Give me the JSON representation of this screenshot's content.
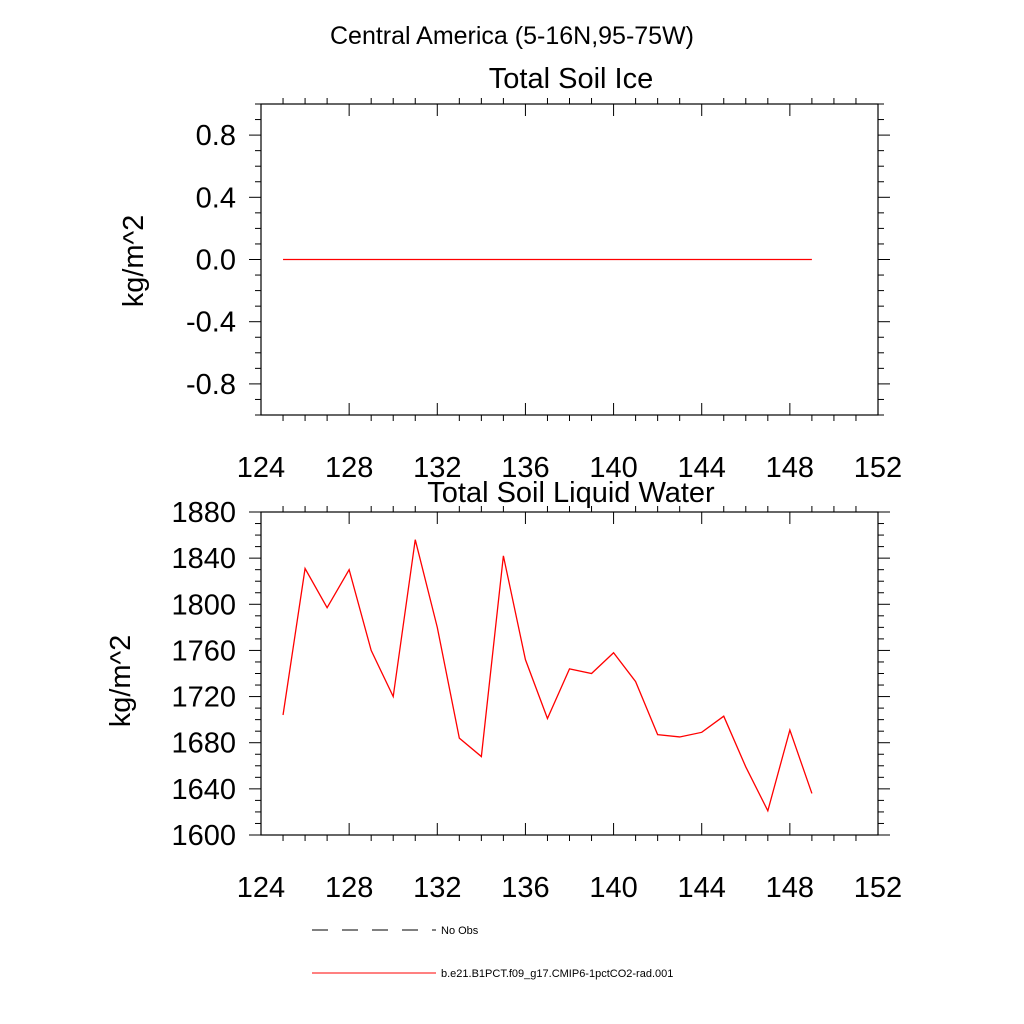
{
  "page_title": "Central America (5-16N,95-75W)",
  "legend": {
    "entries": [
      {
        "label": "No Obs",
        "style": "dashed",
        "color": "#000000"
      },
      {
        "label": "b.e21.B1PCT.f09_g17.CMIP6-1pctCO2-rad.001",
        "style": "solid",
        "color": "#ff0000"
      }
    ]
  },
  "chart_data": [
    {
      "type": "line",
      "title": "Total Soil Ice",
      "xlabel": "",
      "ylabel": "kg/m^2",
      "xlim": [
        124,
        152
      ],
      "ylim": [
        -1.0,
        1.0
      ],
      "x_ticks": [
        124,
        128,
        132,
        136,
        140,
        144,
        148,
        152
      ],
      "x_tick_labels": [
        "124",
        "128",
        "132",
        "136",
        "140",
        "144",
        "148",
        "152"
      ],
      "y_ticks": [
        0.8,
        0.4,
        0.0,
        -0.4,
        -0.8
      ],
      "y_tick_labels": [
        "0.8",
        "0.4",
        "0.0",
        "-0.4",
        "-0.8"
      ],
      "grid": false,
      "series": [
        {
          "color": "#ff0000",
          "x": [
            125,
            126,
            127,
            128,
            129,
            130,
            131,
            132,
            133,
            134,
            135,
            136,
            137,
            138,
            139,
            140,
            141,
            142,
            143,
            144,
            145,
            146,
            147,
            148,
            149
          ],
          "y": [
            0,
            0,
            0,
            0,
            0,
            0,
            0,
            0,
            0,
            0,
            0,
            0,
            0,
            0,
            0,
            0,
            0,
            0,
            0,
            0,
            0,
            0,
            0,
            0,
            0
          ]
        }
      ]
    },
    {
      "type": "line",
      "title": "Total Soil Liquid Water",
      "xlabel": "",
      "ylabel": "kg/m^2",
      "xlim": [
        124,
        152
      ],
      "ylim": [
        1600,
        1880
      ],
      "x_ticks": [
        124,
        128,
        132,
        136,
        140,
        144,
        148,
        152
      ],
      "x_tick_labels": [
        "124",
        "128",
        "132",
        "136",
        "140",
        "144",
        "148",
        "152"
      ],
      "y_ticks": [
        1880,
        1840,
        1800,
        1760,
        1720,
        1680,
        1640,
        1600
      ],
      "y_tick_labels": [
        "1880",
        "1840",
        "1800",
        "1760",
        "1720",
        "1680",
        "1640",
        "1600"
      ],
      "grid": false,
      "series": [
        {
          "color": "#ff0000",
          "x": [
            125,
            126,
            127,
            128,
            129,
            130,
            131,
            132,
            133,
            134,
            135,
            136,
            137,
            138,
            139,
            140,
            141,
            142,
            143,
            144,
            145,
            146,
            147,
            148,
            149
          ],
          "y": [
            1704,
            1831,
            1797,
            1830,
            1760,
            1720,
            1856,
            1780,
            1684,
            1668,
            1842,
            1752,
            1701,
            1744,
            1740,
            1758,
            1733,
            1687,
            1685,
            1689,
            1703,
            1659,
            1621,
            1691,
            1636
          ]
        }
      ]
    }
  ]
}
